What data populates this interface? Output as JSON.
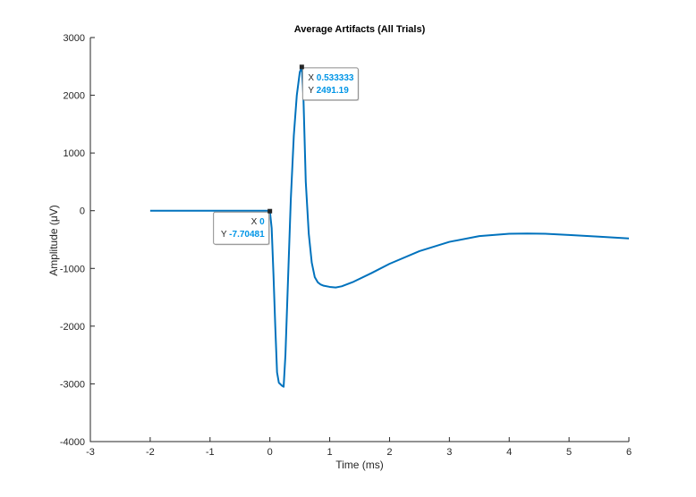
{
  "chart_data": {
    "type": "line",
    "title": "Average Artifacts (All Trials)",
    "xlabel": "Time (ms)",
    "ylabel": "Amplitude (μV)",
    "xlim": [
      -3,
      6
    ],
    "ylim": [
      -4000,
      3000
    ],
    "xticks": [
      -3,
      -2,
      -1,
      0,
      1,
      2,
      3,
      4,
      5,
      6
    ],
    "yticks": [
      -4000,
      -3000,
      -2000,
      -1000,
      0,
      1000,
      2000,
      3000
    ],
    "grid": false,
    "line_color": "#0072bd",
    "series": [
      {
        "x": [
          -2,
          -1.5,
          -1,
          -0.5,
          -0.2,
          -0.05,
          0,
          0.03,
          0.06,
          0.09,
          0.12,
          0.15,
          0.2,
          0.23,
          0.26,
          0.3,
          0.35,
          0.4,
          0.45,
          0.5,
          0.533333,
          0.56,
          0.6,
          0.65,
          0.7,
          0.75,
          0.8,
          0.85,
          0.9,
          1,
          1.1,
          1.2,
          1.4,
          1.7,
          2,
          2.5,
          3,
          3.5,
          4,
          4.3,
          4.6,
          5,
          5.5,
          6
        ],
        "y": [
          0,
          0,
          0,
          0,
          0,
          0,
          -7.70481,
          -300,
          -1100,
          -2000,
          -2800,
          -2980,
          -3030,
          -3050,
          -2500,
          -1300,
          200,
          1300,
          2000,
          2400,
          2491.19,
          2000,
          500,
          -400,
          -900,
          -1150,
          -1240,
          -1280,
          -1300,
          -1320,
          -1330,
          -1310,
          -1230,
          -1080,
          -920,
          -700,
          -540,
          -440,
          -400,
          -395,
          -400,
          -420,
          -450,
          -480
        ]
      }
    ],
    "datatips": [
      {
        "x_key": "X",
        "x_value": "0",
        "y_key": "Y",
        "y_value": "-7.70481",
        "x": 0,
        "y": -7.70481,
        "side": "left"
      },
      {
        "x_key": "X",
        "x_value": "0.533333",
        "y_key": "Y",
        "y_value": "2491.19",
        "x": 0.533333,
        "y": 2491.19,
        "side": "right"
      }
    ],
    "tip_value_color": "#0095e6"
  }
}
